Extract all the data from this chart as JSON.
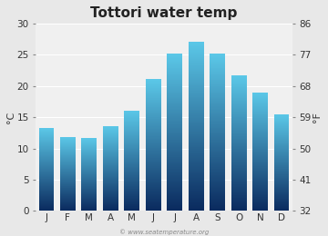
{
  "title": "Tottori water temp",
  "months": [
    "J",
    "F",
    "M",
    "A",
    "M",
    "J",
    "J",
    "A",
    "S",
    "O",
    "N",
    "D"
  ],
  "values_c": [
    13.3,
    11.9,
    11.7,
    13.6,
    16.1,
    21.1,
    25.2,
    27.1,
    25.2,
    21.7,
    19.0,
    15.5
  ],
  "ylim_c": [
    0,
    30
  ],
  "yticks_c": [
    0,
    5,
    10,
    15,
    20,
    25,
    30
  ],
  "yticks_f": [
    32,
    41,
    50,
    59,
    68,
    77,
    86
  ],
  "ylabel_left": "°C",
  "ylabel_right": "°F",
  "bar_color_top": "#5bc8e8",
  "bar_color_bottom": "#0a2a5e",
  "background_color": "#e8e8e8",
  "plot_bg_color": "#f0f0f0",
  "grid_color": "#ffffff",
  "watermark": "© www.seatemperature.org",
  "title_fontsize": 11,
  "tick_fontsize": 7.5,
  "label_fontsize": 8
}
